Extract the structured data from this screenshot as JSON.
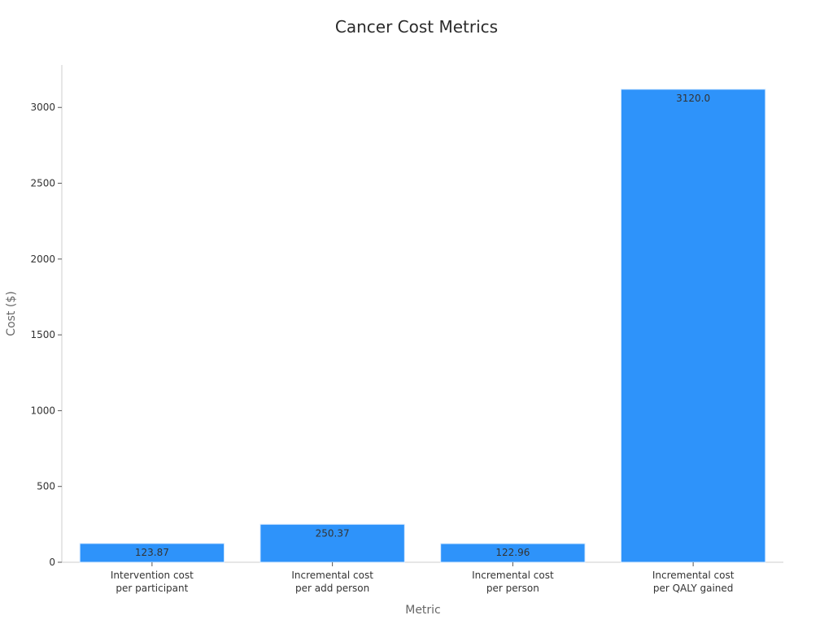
{
  "chart_data": {
    "type": "bar",
    "title": "Cancer Cost Metrics",
    "xlabel": "Metric",
    "ylabel": "Cost ($)",
    "categories": [
      [
        "Intervention cost",
        "per participant"
      ],
      [
        "Incremental cost",
        "per add person"
      ],
      [
        "Incremental cost",
        "per person"
      ],
      [
        "Incremental cost",
        "per QALY gained"
      ]
    ],
    "values": [
      123.87,
      250.37,
      122.96,
      3120.0
    ],
    "data_labels": [
      "123.87",
      "250.37",
      "122.96",
      "3120.0"
    ],
    "ylim": [
      0,
      3280
    ],
    "yticks": [
      0,
      500,
      1000,
      1500,
      2000,
      2500,
      3000
    ],
    "grid": false,
    "bar_color": "#2e93fa"
  }
}
